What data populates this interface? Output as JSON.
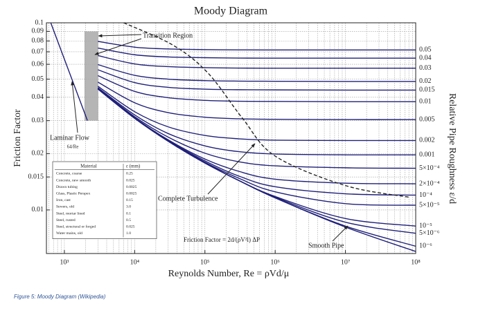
{
  "chart_data": {
    "type": "line",
    "title": "Moody Diagram",
    "x_label": "Reynolds Number, Re = ρVd/μ",
    "y_label": "Friction Factor",
    "y2_label": "Relative Pipe Roughness ε/d",
    "caption": "Figure 5: Moody Diagram (Wikipedia)",
    "xscale": "log",
    "yscale": "log",
    "grid": true,
    "xlim": [
      555,
      100000000
    ],
    "ylim": [
      0.00585,
      0.1
    ],
    "xticks": [
      {
        "value": 1000,
        "label": "10³"
      },
      {
        "value": 10000,
        "label": "10⁴"
      },
      {
        "value": 100000,
        "label": "10⁵"
      },
      {
        "value": 1000000,
        "label": "10⁶"
      },
      {
        "value": 10000000,
        "label": "10⁷"
      },
      {
        "value": 100000000,
        "label": "10⁸"
      }
    ],
    "xminorticks": [
      600,
      700,
      800,
      900,
      2000,
      3000,
      4000,
      5000,
      6000,
      7000,
      8000,
      9000,
      20000,
      30000,
      40000,
      50000,
      60000,
      70000,
      80000,
      90000,
      200000,
      300000,
      400000,
      500000,
      600000,
      700000,
      800000,
      900000,
      2000000,
      3000000,
      4000000,
      5000000,
      6000000,
      7000000,
      8000000,
      9000000,
      20000000,
      30000000,
      40000000,
      50000000,
      60000000,
      70000000,
      80000000,
      90000000
    ],
    "yticks": [
      0.1,
      0.09,
      0.08,
      0.07,
      0.06,
      0.05,
      0.04,
      0.03,
      0.02,
      0.015,
      0.01
    ],
    "color": "#1f1f7a",
    "x": [
      3000,
      10000,
      30000,
      100000,
      300000,
      1000000,
      10000000,
      100000000
    ],
    "series": [
      {
        "name": "0.05",
        "values": [
          0.0795,
          0.0741,
          0.0725,
          0.0719,
          0.0717,
          0.0716,
          0.0716,
          0.0716
        ]
      },
      {
        "name": "0.04",
        "values": [
          0.0733,
          0.0675,
          0.0657,
          0.0651,
          0.0648,
          0.0647,
          0.0647,
          0.0647
        ]
      },
      {
        "name": "0.03",
        "values": [
          0.0668,
          0.0603,
          0.0583,
          0.0576,
          0.0573,
          0.0572,
          0.0572,
          0.0572
        ]
      },
      {
        "name": "0.02",
        "values": [
          0.0598,
          0.0524,
          0.05,
          0.0491,
          0.0488,
          0.0487,
          0.0486,
          0.0486
        ]
      },
      {
        "name": "0.015",
        "values": [
          0.0561,
          0.0479,
          0.0452,
          0.0442,
          0.0439,
          0.0438,
          0.0437,
          0.0437
        ]
      },
      {
        "name": "0.01",
        "values": [
          0.0522,
          0.043,
          0.0398,
          0.0385,
          0.0381,
          0.038,
          0.0379,
          0.0379
        ]
      },
      {
        "name": "0.005",
        "values": [
          0.0482,
          0.0374,
          0.0331,
          0.0313,
          0.0307,
          0.0305,
          0.0304,
          0.0304
        ]
      },
      {
        "name": "0.002",
        "values": [
          0.0458,
          0.0335,
          0.0278,
          0.025,
          0.024,
          0.0236,
          0.0235,
          0.0235
        ]
      },
      {
        "name": "0.001",
        "values": [
          0.045,
          0.0322,
          0.0256,
          0.022,
          0.0205,
          0.0199,
          0.0197,
          0.0197
        ]
      },
      {
        "name": "5×10⁻⁴",
        "values": [
          0.0447,
          0.0315,
          0.0245,
          0.0201,
          0.0181,
          0.0172,
          0.0168,
          0.0167
        ]
      },
      {
        "name": "2×10⁻⁴",
        "values": [
          0.0444,
          0.0311,
          0.0237,
          0.0187,
          0.0161,
          0.0146,
          0.0139,
          0.0138
        ]
      },
      {
        "name": "10⁻⁴",
        "values": [
          0.0444,
          0.031,
          0.0235,
          0.0183,
          0.0152,
          0.0133,
          0.0122,
          0.012
        ]
      },
      {
        "name": "5×10⁻⁵",
        "values": [
          0.0443,
          0.0309,
          0.0234,
          0.018,
          0.0148,
          0.0125,
          0.0108,
          0.0106
        ]
      },
      {
        "name": "10⁻⁵",
        "values": [
          0.0443,
          0.0309,
          0.0233,
          0.0179,
          0.0144,
          0.0118,
          0.009,
          0.0082
        ]
      },
      {
        "name": "5×10⁻⁶",
        "values": [
          0.0443,
          0.0309,
          0.0233,
          0.0178,
          0.0144,
          0.0117,
          0.0086,
          0.0075
        ]
      },
      {
        "name": "10⁻⁶",
        "values": [
          0.0443,
          0.0309,
          0.0233,
          0.0178,
          0.0144,
          0.0116,
          0.0082,
          0.0064
        ]
      },
      {
        "name": "Smooth Pipe",
        "values": [
          0.0443,
          0.0309,
          0.0233,
          0.0178,
          0.0144,
          0.0116,
          0.0081,
          0.006
        ]
      },
      {
        "name": "Laminar Flow",
        "x": [
          640,
          2130
        ],
        "values": [
          0.1,
          0.03
        ]
      },
      {
        "name": "Complete Turbulence",
        "color": "#222222",
        "dash": true,
        "x": [
          7000,
          35000,
          110000,
          340000,
          1000000,
          10000000,
          80000000
        ],
        "values": [
          0.1,
          0.076,
          0.054,
          0.031,
          0.0194,
          0.0135,
          0.0117
        ]
      }
    ],
    "shaded_region": {
      "name": "Transition Region",
      "color": "#a8a8a8",
      "x": [
        1930,
        3040
      ],
      "y": [
        0.03,
        0.09
      ]
    },
    "laminar_formula": "64/Re",
    "friction_formula": "Friction Factor = 2d/(ρV²l) ΔP",
    "table": {
      "header": [
        "Material",
        "ε (mm)"
      ],
      "rows": [
        [
          "Concrete, coarse",
          "0.25"
        ],
        [
          "Concrete, new smooth",
          "0.025"
        ],
        [
          "Drawn tubing",
          "0.0025"
        ],
        [
          "Glass, Plastic Perspex",
          "0.0025"
        ],
        [
          "Iron, cast",
          "0.15"
        ],
        [
          "Sewers, old",
          "3.0"
        ],
        [
          "Steel, mortar lined",
          "0.1"
        ],
        [
          "Steel, rusted",
          "0.5"
        ],
        [
          "Steel, structural or forged",
          "0.025"
        ],
        [
          "Water mains, old",
          "1.0"
        ]
      ]
    }
  }
}
